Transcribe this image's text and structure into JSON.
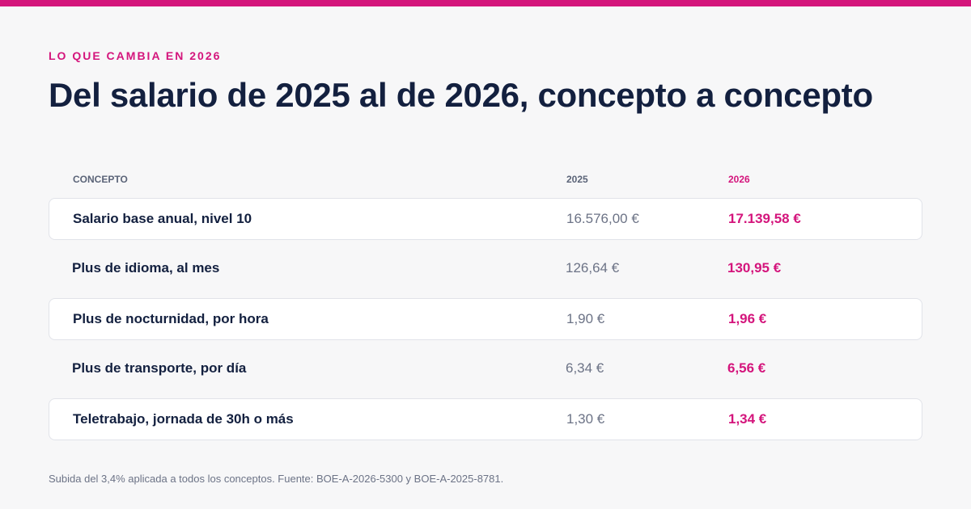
{
  "colors": {
    "accent": "#d4157c",
    "heading": "#13203f",
    "muted": "#6c7386",
    "background": "#f7f7f8",
    "row_background": "#ffffff"
  },
  "eyebrow": "LO QUE CAMBIA EN 2026",
  "title": "Del salario de 2025 al de 2026, concepto a concepto",
  "table": {
    "headers": {
      "concept": "CONCEPTO",
      "y2025": "2025",
      "y2026": "2026"
    },
    "rows": [
      {
        "concept": "Salario base anual, nivel 10",
        "y2025": "16.576,00 €",
        "y2026": "17.139,58 €",
        "boxed": true
      },
      {
        "concept": "Plus de idioma, al mes",
        "y2025": "126,64 €",
        "y2026": "130,95 €",
        "boxed": false
      },
      {
        "concept": "Plus de nocturnidad, por hora",
        "y2025": "1,90 €",
        "y2026": "1,96 €",
        "boxed": true
      },
      {
        "concept": "Plus de transporte, por día",
        "y2025": "6,34 €",
        "y2026": "6,56 €",
        "boxed": false
      },
      {
        "concept": "Teletrabajo, jornada de 30h o más",
        "y2025": "1,30 €",
        "y2026": "1,34 €",
        "boxed": true
      }
    ]
  },
  "footnote": "Subida del 3,4% aplicada a todos los conceptos. Fuente: BOE-A-2026-5300 y BOE-A-2025-8781."
}
